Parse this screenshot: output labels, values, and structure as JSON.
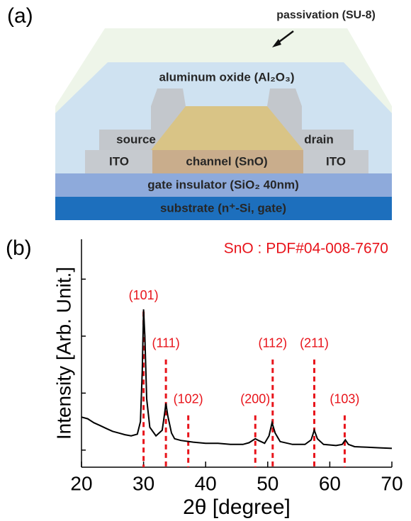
{
  "diagram": {
    "panel_label": "(a)",
    "passivation": "passivation (SU-8)",
    "oxide": "aluminum oxide (Al₂O₃)",
    "source": "source",
    "drain": "drain",
    "ito_left": "ITO",
    "channel": "channel (SnO)",
    "ito_right": "ITO",
    "insulator": "gate insulator (SiO₂ 40nm)",
    "substrate": "substrate (n⁺-Si, gate)"
  },
  "chart_data": {
    "type": "line",
    "panel_label": "(b)",
    "annotation": "SnO : PDF#04-008-7670",
    "xlabel": "2θ [degree]",
    "ylabel": "Intensity [Arb. Unit.]",
    "color": "#000000",
    "x": [
      20,
      21,
      22,
      23,
      24,
      25,
      26,
      27,
      28,
      29,
      29.5,
      29.8,
      30.0,
      30.2,
      30.5,
      31,
      32,
      33,
      33.4,
      33.6,
      33.9,
      34.5,
      35,
      36,
      38,
      40,
      42,
      44,
      46,
      47,
      48,
      48.5,
      49.5,
      50.2,
      50.7,
      51.2,
      52,
      54,
      56,
      57,
      57.5,
      58,
      59,
      61,
      62,
      62.5,
      63,
      64,
      66,
      68,
      70
    ],
    "values": [
      1.58,
      1.55,
      1.48,
      1.43,
      1.38,
      1.33,
      1.3,
      1.27,
      1.25,
      1.28,
      1.5,
      2.4,
      3.47,
      3.0,
      1.9,
      1.4,
      1.25,
      1.35,
      1.65,
      1.82,
      1.6,
      1.3,
      1.2,
      1.17,
      1.14,
      1.12,
      1.12,
      1.1,
      1.1,
      1.13,
      1.2,
      1.17,
      1.12,
      1.25,
      1.48,
      1.3,
      1.15,
      1.1,
      1.1,
      1.18,
      1.35,
      1.2,
      1.1,
      1.08,
      1.1,
      1.18,
      1.1,
      1.06,
      1.05,
      1.04,
      1.03
    ],
    "reference_peaks": {
      "color": "#e8141b",
      "x": [
        30.0,
        33.6,
        37.2,
        48.0,
        50.8,
        57.5,
        62.4
      ],
      "heights": [
        3.43,
        2.59,
        1.61,
        1.61,
        2.59,
        2.59,
        1.61
      ],
      "labels": [
        "(101)",
        "(111)",
        "(102)",
        "(200)",
        "(112)",
        "(211)",
        "(103)"
      ]
    },
    "xlim": [
      20,
      70
    ],
    "xticks": [
      20,
      30,
      40,
      50,
      60,
      70
    ],
    "ylim": [
      0.7,
      4.7
    ],
    "yticks": [
      1,
      2,
      3,
      4
    ]
  }
}
